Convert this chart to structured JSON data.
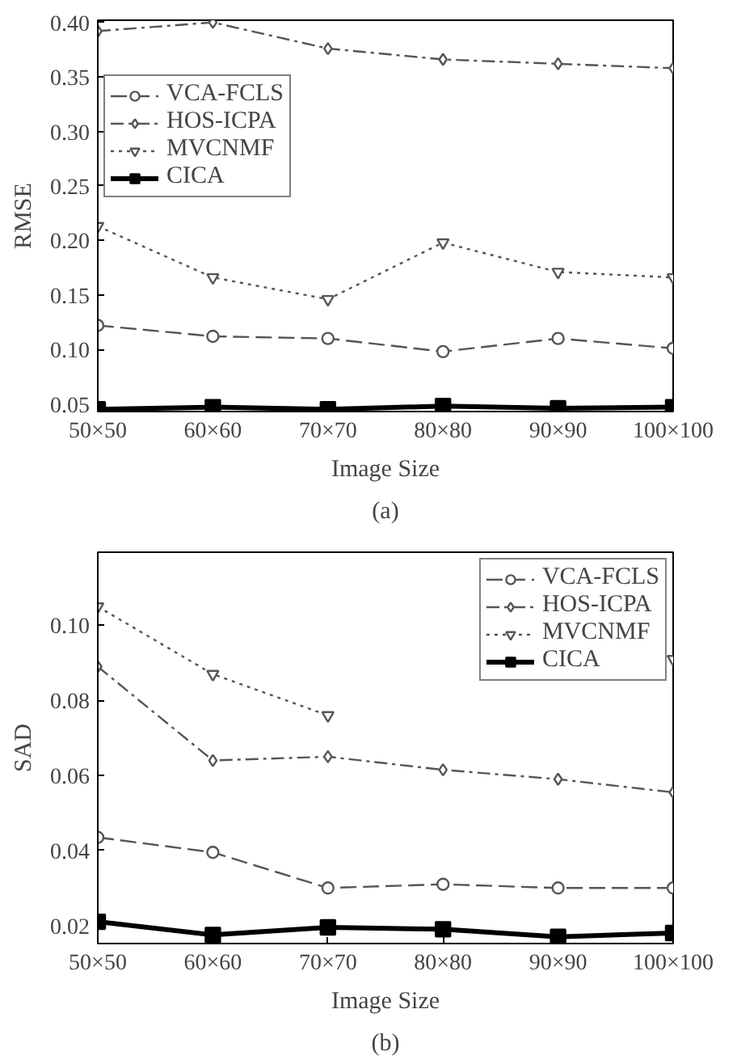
{
  "chart_data": [
    {
      "type": "line",
      "xlabel": "Image Size",
      "ylabel": "RMSE",
      "annotations": [
        "(a)"
      ],
      "categories": [
        "50×50",
        "60×60",
        "70×70",
        "80×80",
        "90×90",
        "100×100"
      ],
      "series": [
        {
          "name": "VCA-FCLS",
          "color": "#555555",
          "marker": "circle",
          "line_style": "dashed",
          "values": [
            0.122,
            0.112,
            0.11,
            0.098,
            0.11,
            0.101
          ]
        },
        {
          "name": "HOS-ICPA",
          "color": "#555555",
          "marker": "diamond",
          "line_style": "dashdot",
          "values": [
            0.392,
            0.4,
            0.376,
            0.366,
            0.362,
            0.358
          ]
        },
        {
          "name": "MVCNMF",
          "color": "#555555",
          "marker": "triangle_down",
          "line_style": "dotted",
          "values": [
            0.213,
            0.166,
            0.146,
            0.198,
            0.171,
            0.166
          ]
        },
        {
          "name": "CICA",
          "color": "#000000",
          "marker": "square",
          "line_style": "solid",
          "values": [
            0.045,
            0.047,
            0.045,
            0.048,
            0.046,
            0.047
          ]
        }
      ],
      "ylim": [
        0.043,
        0.402
      ],
      "yticks": [
        {
          "value": 0.05,
          "label": "0.05"
        },
        {
          "value": 0.1,
          "label": "0.10"
        },
        {
          "value": 0.15,
          "label": "0.15"
        },
        {
          "value": 0.2,
          "label": "0.20"
        },
        {
          "value": 0.25,
          "label": "0.25"
        },
        {
          "value": 0.3,
          "label": "0.30"
        },
        {
          "value": 0.35,
          "label": "0.35"
        },
        {
          "value": 0.4,
          "label": "0.40"
        }
      ],
      "grid": false,
      "legend": "top left"
    },
    {
      "type": "line",
      "xlabel": "Image Size",
      "ylabel": "SAD",
      "annotations": [
        "(b)"
      ],
      "categories": [
        "50×50",
        "60×60",
        "70×70",
        "80×80",
        "90×90",
        "100×100"
      ],
      "series": [
        {
          "name": "VCA-FCLS",
          "color": "#555555",
          "marker": "circle",
          "line_style": "dashed",
          "values": [
            0.0435,
            0.0395,
            0.03,
            0.031,
            0.03,
            0.03
          ]
        },
        {
          "name": "HOS-ICPA",
          "color": "#555555",
          "marker": "diamond",
          "line_style": "dashdot",
          "values": [
            0.089,
            0.064,
            0.065,
            0.0615,
            0.059,
            0.0555
          ]
        },
        {
          "name": "MVCNMF",
          "color": "#555555",
          "marker": "triangle_down",
          "line_style": "dotted",
          "values": [
            0.105,
            0.087,
            0.076,
            null,
            null,
            0.091
          ]
        },
        {
          "name": "CICA",
          "color": "#000000",
          "marker": "square",
          "line_style": "solid",
          "values": [
            0.021,
            0.0175,
            0.0195,
            0.019,
            0.017,
            0.018
          ]
        }
      ],
      "ylim": [
        0.0152,
        0.1195
      ],
      "yticks": [
        {
          "value": 0.02,
          "label": "0.02"
        },
        {
          "value": 0.04,
          "label": "0.04"
        },
        {
          "value": 0.06,
          "label": "0.06"
        },
        {
          "value": 0.08,
          "label": "0.08"
        },
        {
          "value": 0.1,
          "label": "0.10"
        }
      ],
      "grid": false,
      "legend": "top right"
    }
  ]
}
